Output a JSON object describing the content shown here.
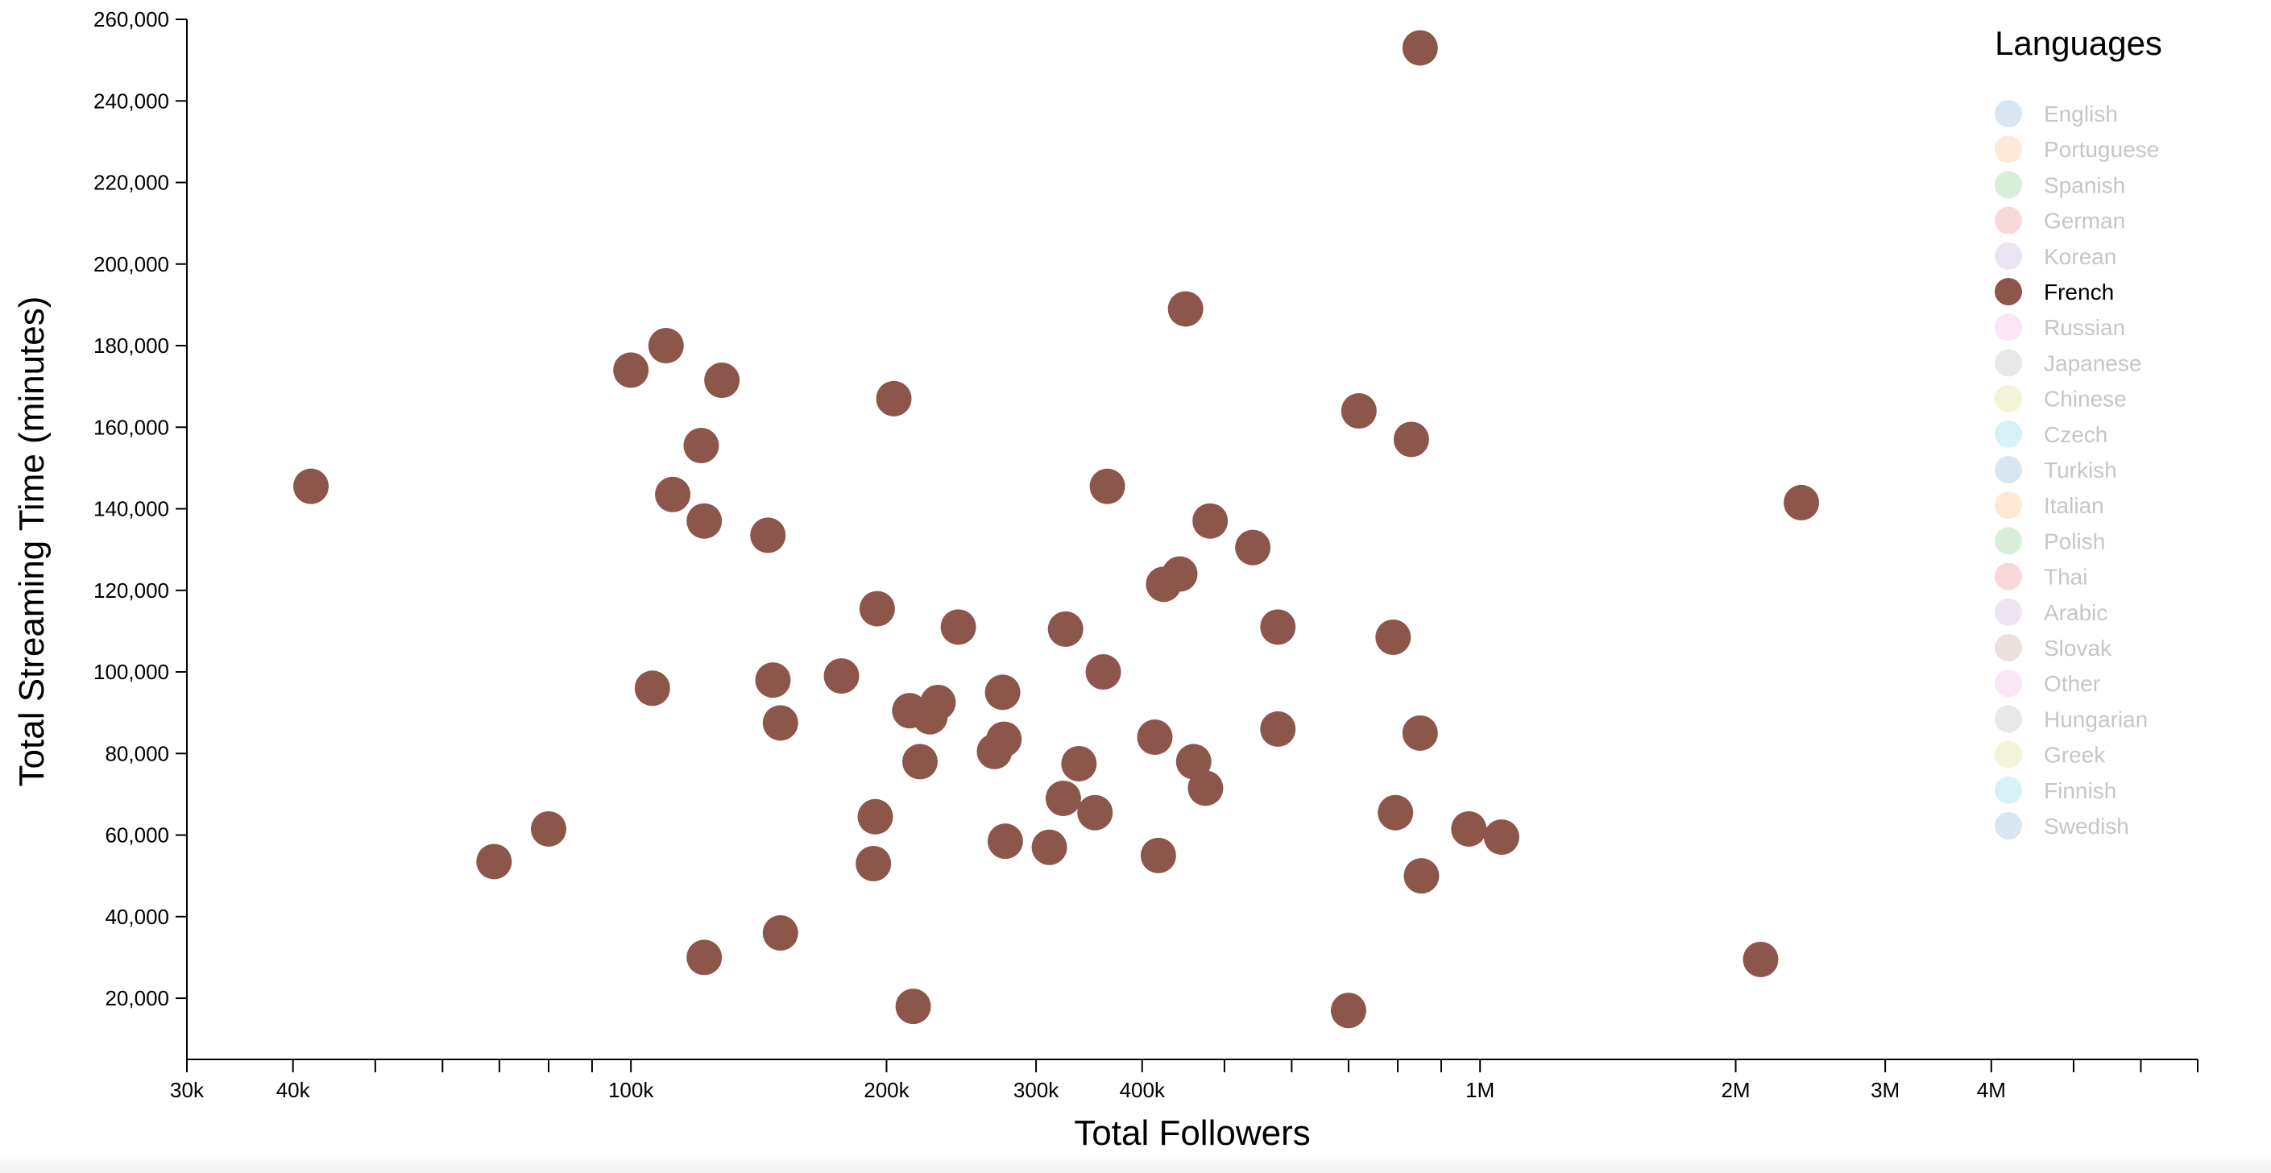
{
  "chart_data": {
    "type": "scatter",
    "xlabel": "Total Followers",
    "ylabel": "Total Streaming Time (minutes)",
    "xscale": "log",
    "xlim": [
      30000,
      7000000
    ],
    "ylim": [
      5000,
      260000
    ],
    "x_tick_labels": [
      {
        "value": 30000,
        "label": "30k"
      },
      {
        "value": 40000,
        "label": "40k"
      },
      {
        "value": 100000,
        "label": "100k"
      },
      {
        "value": 200000,
        "label": "200k"
      },
      {
        "value": 300000,
        "label": "300k"
      },
      {
        "value": 400000,
        "label": "400k"
      },
      {
        "value": 1000000,
        "label": "1M"
      },
      {
        "value": 2000000,
        "label": "2M"
      },
      {
        "value": 3000000,
        "label": "3M"
      },
      {
        "value": 4000000,
        "label": "4M"
      }
    ],
    "x_minor_ticks": [
      50000,
      60000,
      70000,
      80000,
      90000,
      500000,
      600000,
      700000,
      800000,
      900000,
      5000000,
      6000000,
      7000000
    ],
    "y_ticks": [
      {
        "value": 20000,
        "label": "20,000"
      },
      {
        "value": 40000,
        "label": "40,000"
      },
      {
        "value": 60000,
        "label": "60,000"
      },
      {
        "value": 80000,
        "label": "80,000"
      },
      {
        "value": 100000,
        "label": "100,000"
      },
      {
        "value": 120000,
        "label": "120,000"
      },
      {
        "value": 140000,
        "label": "140,000"
      },
      {
        "value": 160000,
        "label": "160,000"
      },
      {
        "value": 180000,
        "label": "180,000"
      },
      {
        "value": 200000,
        "label": "200,000"
      },
      {
        "value": 220000,
        "label": "220,000"
      },
      {
        "value": 240000,
        "label": "240,000"
      },
      {
        "value": 260000,
        "label": "260,000"
      }
    ],
    "grid": false,
    "legend": {
      "title": "Languages",
      "placement": "top-right",
      "active": "French",
      "items": [
        {
          "name": "English",
          "color": "#1f77b4"
        },
        {
          "name": "Portuguese",
          "color": "#ff7f0e"
        },
        {
          "name": "Spanish",
          "color": "#2ca02c"
        },
        {
          "name": "German",
          "color": "#d62728"
        },
        {
          "name": "Korean",
          "color": "#9467bd"
        },
        {
          "name": "French",
          "color": "#8c564b"
        },
        {
          "name": "Russian",
          "color": "#e377c2"
        },
        {
          "name": "Japanese",
          "color": "#7f7f7f"
        },
        {
          "name": "Chinese",
          "color": "#bcbd22"
        },
        {
          "name": "Czech",
          "color": "#17becf"
        },
        {
          "name": "Turkish",
          "color": "#1f77b4"
        },
        {
          "name": "Italian",
          "color": "#ff7f0e"
        },
        {
          "name": "Polish",
          "color": "#2ca02c"
        },
        {
          "name": "Thai",
          "color": "#d62728"
        },
        {
          "name": "Arabic",
          "color": "#9467bd"
        },
        {
          "name": "Slovak",
          "color": "#8c564b"
        },
        {
          "name": "Other",
          "color": "#e377c2"
        },
        {
          "name": "Hungarian",
          "color": "#7f7f7f"
        },
        {
          "name": "Greek",
          "color": "#bcbd22"
        },
        {
          "name": "Finnish",
          "color": "#17becf"
        },
        {
          "name": "Swedish",
          "color": "#1f77b4"
        }
      ]
    },
    "series": [
      {
        "name": "French",
        "color": "#8c564b",
        "points": [
          {
            "x": 850000,
            "y": 253000
          },
          {
            "x": 450000,
            "y": 189000
          },
          {
            "x": 110000,
            "y": 180000
          },
          {
            "x": 100000,
            "y": 174000
          },
          {
            "x": 128000,
            "y": 171500
          },
          {
            "x": 204000,
            "y": 167000
          },
          {
            "x": 720000,
            "y": 164000
          },
          {
            "x": 830000,
            "y": 157000
          },
          {
            "x": 121000,
            "y": 155500
          },
          {
            "x": 42000,
            "y": 145500
          },
          {
            "x": 364000,
            "y": 145500
          },
          {
            "x": 112000,
            "y": 143500
          },
          {
            "x": 2390000,
            "y": 141500
          },
          {
            "x": 481000,
            "y": 137000
          },
          {
            "x": 122000,
            "y": 137000
          },
          {
            "x": 145000,
            "y": 133500
          },
          {
            "x": 540000,
            "y": 130500
          },
          {
            "x": 443000,
            "y": 124000
          },
          {
            "x": 424000,
            "y": 121500
          },
          {
            "x": 195000,
            "y": 115500
          },
          {
            "x": 243000,
            "y": 111000
          },
          {
            "x": 578000,
            "y": 111000
          },
          {
            "x": 325000,
            "y": 110500
          },
          {
            "x": 790000,
            "y": 108500
          },
          {
            "x": 360000,
            "y": 100000
          },
          {
            "x": 177000,
            "y": 99000
          },
          {
            "x": 147000,
            "y": 98000
          },
          {
            "x": 106000,
            "y": 96000
          },
          {
            "x": 274000,
            "y": 95000
          },
          {
            "x": 230000,
            "y": 92500
          },
          {
            "x": 213000,
            "y": 90500
          },
          {
            "x": 225000,
            "y": 89000
          },
          {
            "x": 150000,
            "y": 87500
          },
          {
            "x": 578000,
            "y": 86000
          },
          {
            "x": 850000,
            "y": 85000
          },
          {
            "x": 414000,
            "y": 84000
          },
          {
            "x": 275000,
            "y": 83500
          },
          {
            "x": 268000,
            "y": 80500
          },
          {
            "x": 219000,
            "y": 78000
          },
          {
            "x": 460000,
            "y": 78000
          },
          {
            "x": 337000,
            "y": 77500
          },
          {
            "x": 475000,
            "y": 71500
          },
          {
            "x": 323000,
            "y": 69000
          },
          {
            "x": 795000,
            "y": 65500
          },
          {
            "x": 194000,
            "y": 64500
          },
          {
            "x": 352000,
            "y": 65500
          },
          {
            "x": 80000,
            "y": 61500
          },
          {
            "x": 970000,
            "y": 61500
          },
          {
            "x": 1060000,
            "y": 59500
          },
          {
            "x": 276000,
            "y": 58500
          },
          {
            "x": 311000,
            "y": 57000
          },
          {
            "x": 69000,
            "y": 53500
          },
          {
            "x": 193000,
            "y": 53000
          },
          {
            "x": 418000,
            "y": 55000
          },
          {
            "x": 853000,
            "y": 50000
          },
          {
            "x": 150000,
            "y": 36000
          },
          {
            "x": 122000,
            "y": 30000
          },
          {
            "x": 2140000,
            "y": 29500
          },
          {
            "x": 215000,
            "y": 18000
          },
          {
            "x": 700000,
            "y": 17000
          }
        ]
      }
    ]
  }
}
